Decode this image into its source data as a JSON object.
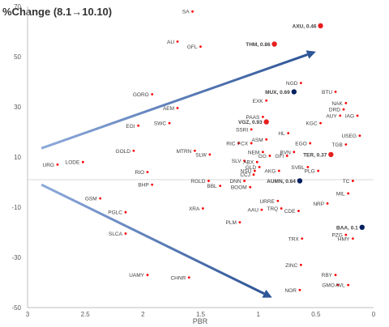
{
  "chart_data": {
    "type": "scatter",
    "title": "%Change  (8.1→10.10)",
    "xlabel": "PBR",
    "ylabel": "",
    "x_reversed": true,
    "xlim": [
      0,
      3
    ],
    "ylim": [
      -50,
      70
    ],
    "x_ticks": [
      "3",
      "2.5",
      "2",
      "1.5",
      "1",
      "0.5",
      "0"
    ],
    "y_ticks": [
      "70",
      "50",
      "30",
      "10",
      "-10",
      "-30",
      "-50"
    ],
    "grid": false,
    "colors": {
      "small": "#ff0000",
      "big_red": "#e81e1e",
      "big_blue": "#002060",
      "arrow": "#2e5597"
    },
    "points": [
      {
        "label": "SA",
        "x": 1.57,
        "y": 68,
        "marker": "small"
      },
      {
        "label": "AU",
        "x": 1.7,
        "y": 56,
        "marker": "small"
      },
      {
        "label": "GFL",
        "x": 1.5,
        "y": 54,
        "marker": "small"
      },
      {
        "label": "AXU, 0.46",
        "x": 0.46,
        "y": 62.3,
        "marker": "big-red",
        "bold": true
      },
      {
        "label": "THM, 0.86",
        "x": 0.86,
        "y": 55,
        "marker": "big-red",
        "bold": true
      },
      {
        "label": "NGD",
        "x": 0.63,
        "y": 39.5,
        "marker": "small"
      },
      {
        "label": "MUX, 0.69",
        "x": 0.69,
        "y": 36,
        "marker": "big-blue",
        "bold": true
      },
      {
        "label": "BTU",
        "x": 0.33,
        "y": 36,
        "marker": "small"
      },
      {
        "label": "GORO",
        "x": 1.92,
        "y": 35,
        "marker": "small"
      },
      {
        "label": "EXK",
        "x": 0.93,
        "y": 32.5,
        "marker": "small"
      },
      {
        "label": "NAK",
        "x": 0.24,
        "y": 31.5,
        "marker": "small"
      },
      {
        "label": "AEM",
        "x": 1.7,
        "y": 29.5,
        "marker": "small"
      },
      {
        "label": "DRD",
        "x": 0.26,
        "y": 29,
        "marker": "small"
      },
      {
        "label": "AUY",
        "x": 0.29,
        "y": 26.5,
        "marker": "small"
      },
      {
        "label": "IAG",
        "x": 0.14,
        "y": 26.5,
        "marker": "small"
      },
      {
        "label": "PAAS",
        "x": 0.96,
        "y": 26,
        "marker": "small"
      },
      {
        "label": "VGZ, 0.93",
        "x": 0.93,
        "y": 24,
        "marker": "big-red",
        "bold": true
      },
      {
        "label": "KGC",
        "x": 0.46,
        "y": 23.5,
        "marker": "small"
      },
      {
        "label": "SWC",
        "x": 1.77,
        "y": 23.5,
        "marker": "small"
      },
      {
        "label": "EGI",
        "x": 2.04,
        "y": 22.5,
        "marker": "small"
      },
      {
        "label": "SSRI",
        "x": 1.06,
        "y": 21,
        "marker": "small"
      },
      {
        "label": "HL",
        "x": 0.74,
        "y": 19.5,
        "marker": "small"
      },
      {
        "label": "USEG",
        "x": 0.12,
        "y": 18.5,
        "marker": "small"
      },
      {
        "label": "ASM",
        "x": 0.93,
        "y": 17,
        "marker": "small"
      },
      {
        "label": "RIC",
        "x": 1.17,
        "y": 15.5,
        "marker": "small"
      },
      {
        "label": "FCX",
        "x": 1.06,
        "y": 15.5,
        "marker": "small"
      },
      {
        "label": "EGO",
        "x": 0.55,
        "y": 15.5,
        "marker": "small"
      },
      {
        "label": "TGB",
        "x": 0.24,
        "y": 15,
        "marker": "small"
      },
      {
        "label": "GOLD",
        "x": 2.08,
        "y": 12.5,
        "marker": "small"
      },
      {
        "label": "MTRN",
        "x": 1.55,
        "y": 12.5,
        "marker": "small"
      },
      {
        "label": "NEM",
        "x": 0.96,
        "y": 12,
        "marker": "small"
      },
      {
        "label": "BVN",
        "x": 0.69,
        "y": 12,
        "marker": "small"
      },
      {
        "label": "SLW",
        "x": 1.42,
        "y": 11,
        "marker": "small"
      },
      {
        "label": "GG",
        "x": 0.9,
        "y": 10.5,
        "marker": "small"
      },
      {
        "label": "GFI",
        "x": 0.75,
        "y": 10.5,
        "marker": "small"
      },
      {
        "label": "TER, 0.37",
        "x": 0.37,
        "y": 11,
        "marker": "big-red",
        "bold": true
      },
      {
        "label": "SLV",
        "x": 1.12,
        "y": 8.5,
        "marker": "small"
      },
      {
        "label": "ABX",
        "x": 1.01,
        "y": 8,
        "marker": "small"
      },
      {
        "label": "LODE",
        "x": 2.52,
        "y": 8,
        "marker": "small"
      },
      {
        "label": "URG",
        "x": 2.74,
        "y": 7,
        "marker": "small"
      },
      {
        "label": "GLD",
        "x": 0.99,
        "y": 6,
        "marker": "small"
      },
      {
        "label": "SVBL",
        "x": 0.57,
        "y": 6,
        "marker": "small"
      },
      {
        "label": "NSU",
        "x": 1.03,
        "y": 4.5,
        "marker": "small"
      },
      {
        "label": "AKG",
        "x": 0.82,
        "y": 4.5,
        "marker": "small"
      },
      {
        "label": "PLG",
        "x": 0.48,
        "y": 4.5,
        "marker": "small"
      },
      {
        "label": "RIO",
        "x": 1.96,
        "y": 4,
        "marker": "small"
      },
      {
        "label": "CCJ",
        "x": 1.04,
        "y": 3,
        "marker": "small"
      },
      {
        "label": "RGLD",
        "x": 1.43,
        "y": 0.5,
        "marker": "small"
      },
      {
        "label": "DNN",
        "x": 1.12,
        "y": 0.5,
        "marker": "small"
      },
      {
        "label": "AUMN, 0.64",
        "x": 0.64,
        "y": 0.5,
        "marker": "big-blue",
        "bold": true
      },
      {
        "label": "TC",
        "x": 0.18,
        "y": 0.5,
        "marker": "small"
      },
      {
        "label": "BHP",
        "x": 1.92,
        "y": -1,
        "marker": "small"
      },
      {
        "label": "BBL",
        "x": 1.33,
        "y": -1.5,
        "marker": "small"
      },
      {
        "label": "BOOM",
        "x": 1.07,
        "y": -2,
        "marker": "small"
      },
      {
        "label": "MIL",
        "x": 0.22,
        "y": -4.5,
        "marker": "small"
      },
      {
        "label": "GSM",
        "x": 2.37,
        "y": -6.5,
        "marker": "small"
      },
      {
        "label": "URRE",
        "x": 0.83,
        "y": -7.5,
        "marker": "small"
      },
      {
        "label": "NRP",
        "x": 0.4,
        "y": -8.5,
        "marker": "small"
      },
      {
        "label": "XRA",
        "x": 1.48,
        "y": -10.5,
        "marker": "small"
      },
      {
        "label": "TRQ",
        "x": 0.8,
        "y": -10.5,
        "marker": "small"
      },
      {
        "label": "AAU",
        "x": 0.97,
        "y": -11,
        "marker": "small"
      },
      {
        "label": "CDE",
        "x": 0.65,
        "y": -11.5,
        "marker": "small"
      },
      {
        "label": "PGLC",
        "x": 2.15,
        "y": -12,
        "marker": "small"
      },
      {
        "label": "PLM",
        "x": 1.16,
        "y": -16,
        "marker": "small"
      },
      {
        "label": "BAA, 0.1",
        "x": 0.1,
        "y": -18,
        "marker": "big-blue",
        "bold": true
      },
      {
        "label": "SLCA",
        "x": 2.15,
        "y": -20.5,
        "marker": "small"
      },
      {
        "label": "PZG",
        "x": 0.24,
        "y": -21,
        "marker": "small"
      },
      {
        "label": "TRX",
        "x": 0.62,
        "y": -22.5,
        "marker": "small"
      },
      {
        "label": "HMY",
        "x": 0.18,
        "y": -22.5,
        "marker": "small"
      },
      {
        "label": "ZINC",
        "x": 0.63,
        "y": -33,
        "marker": "small"
      },
      {
        "label": "UAMY",
        "x": 1.96,
        "y": -37,
        "marker": "small"
      },
      {
        "label": "RBY",
        "x": 0.33,
        "y": -37,
        "marker": "small"
      },
      {
        "label": "CHNR",
        "x": 1.6,
        "y": -38,
        "marker": "small"
      },
      {
        "label": "GMO",
        "x": 0.31,
        "y": -41,
        "marker": "small"
      },
      {
        "label": "AVL",
        "x": 0.22,
        "y": -41,
        "marker": "small"
      },
      {
        "label": "NOR",
        "x": 0.64,
        "y": -43,
        "marker": "small"
      }
    ],
    "arrows": [
      {
        "from": [
          2.88,
          13.5
        ],
        "to": [
          0.5,
          52
        ]
      },
      {
        "from": [
          2.88,
          -1
        ],
        "to": [
          0.88,
          -46
        ]
      }
    ]
  }
}
